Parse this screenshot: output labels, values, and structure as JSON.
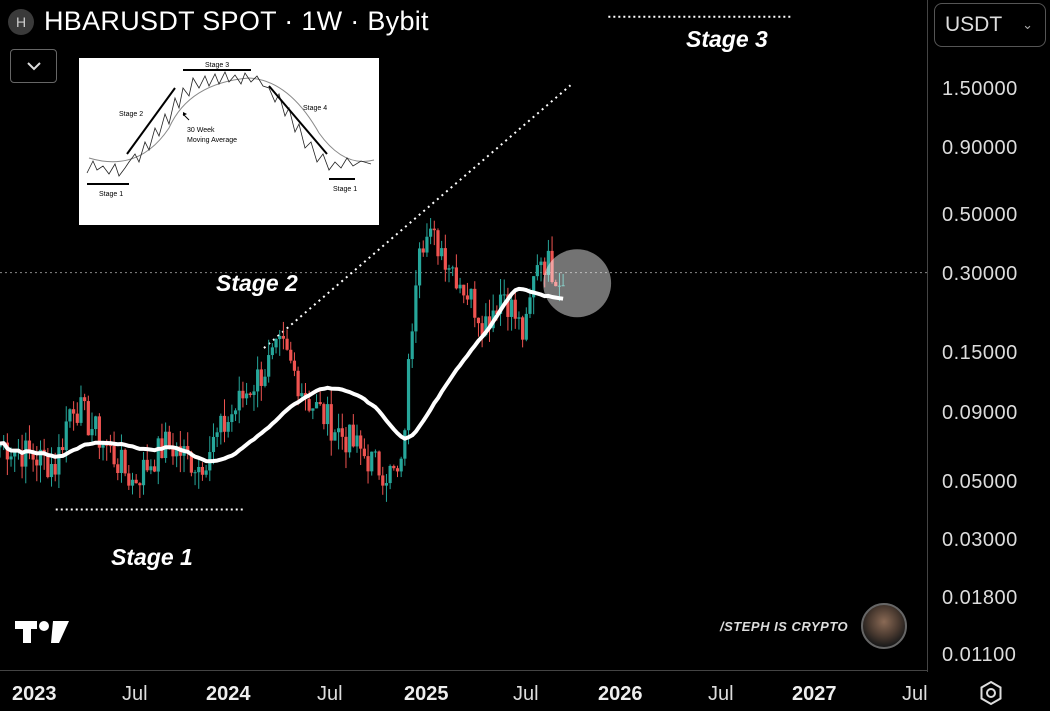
{
  "header": {
    "symbol_icon": "H",
    "title": "HBARUSDT SPOT · 1W · Bybit"
  },
  "currency_select": {
    "value": "USDT"
  },
  "price_axis": {
    "labels": [
      "1.50000",
      "0.90000",
      "0.50000",
      "0.30000",
      "0.15000",
      "0.09000",
      "0.05000",
      "0.03000",
      "0.01800",
      "0.01100"
    ]
  },
  "time_axis": {
    "labels": [
      {
        "text": "2023",
        "year": true
      },
      {
        "text": "Jul",
        "year": false
      },
      {
        "text": "2024",
        "year": true
      },
      {
        "text": "Jul",
        "year": false
      },
      {
        "text": "2025",
        "year": true
      },
      {
        "text": "Jul",
        "year": false
      },
      {
        "text": "2026",
        "year": true
      },
      {
        "text": "Jul",
        "year": false
      },
      {
        "text": "2027",
        "year": true
      },
      {
        "text": "Jul",
        "year": false
      }
    ]
  },
  "annotations": {
    "stage1": "Stage 1",
    "stage2": "Stage 2",
    "stage3": "Stage 3"
  },
  "inset": {
    "labels": {
      "stage1_left": "Stage 1",
      "stage2": "Stage 2",
      "stage3": "Stage 3",
      "stage4": "Stage 4",
      "ma": "30 Week",
      "ma2": "Moving Average",
      "stage1_right": "Stage 1"
    }
  },
  "watermark": "/STEPH IS CRYPTO",
  "colors": {
    "up": "#26a69a",
    "down": "#ef5350",
    "ma": "#ffffff",
    "background": "#000000"
  },
  "chart_data": {
    "type": "candlestick",
    "title": "HBARUSDT SPOT · 1W · Bybit",
    "y_scale": "log",
    "ylim": [
      0.0095,
      2.2
    ],
    "x_range": [
      "2022-10-01",
      "2027-08-01"
    ],
    "moving_average": "30 Week Moving Average",
    "series_key_points": [
      {
        "date": "2022-10-01",
        "close": 0.06
      },
      {
        "date": "2023-01-15",
        "close": 0.05
      },
      {
        "date": "2023-02-15",
        "close": 0.085
      },
      {
        "date": "2023-06-10",
        "close": 0.044
      },
      {
        "date": "2023-08-15",
        "close": 0.06
      },
      {
        "date": "2023-10-15",
        "close": 0.05
      },
      {
        "date": "2024-01-10",
        "close": 0.09
      },
      {
        "date": "2024-03-20",
        "close": 0.13
      },
      {
        "date": "2024-05-10",
        "close": 0.085
      },
      {
        "date": "2024-07-10",
        "close": 0.065
      },
      {
        "date": "2024-09-15",
        "close": 0.05
      },
      {
        "date": "2024-11-01",
        "close": 0.045
      },
      {
        "date": "2024-12-05",
        "close": 0.33
      },
      {
        "date": "2025-01-15",
        "close": 0.3
      },
      {
        "date": "2025-04-10",
        "close": 0.16
      },
      {
        "date": "2025-05-15",
        "close": 0.21
      },
      {
        "date": "2025-06-25",
        "close": 0.14
      },
      {
        "date": "2025-07-20",
        "close": 0.28
      },
      {
        "date": "2025-09-10",
        "close": 0.225
      }
    ],
    "horizontal_line": 0.24,
    "trendline": {
      "from": {
        "date": "2024-02-15",
        "price": 0.13
      },
      "to": {
        "date": "2025-09-20",
        "price": 1.1
      }
    },
    "stage_lines": [
      {
        "label": "Stage 1",
        "from": "2023-01-15",
        "to": "2024-01-10",
        "price": 0.035
      },
      {
        "label": "Stage 3",
        "from": "2025-12-01",
        "to": "2026-11-15",
        "price": 1.92
      }
    ]
  }
}
